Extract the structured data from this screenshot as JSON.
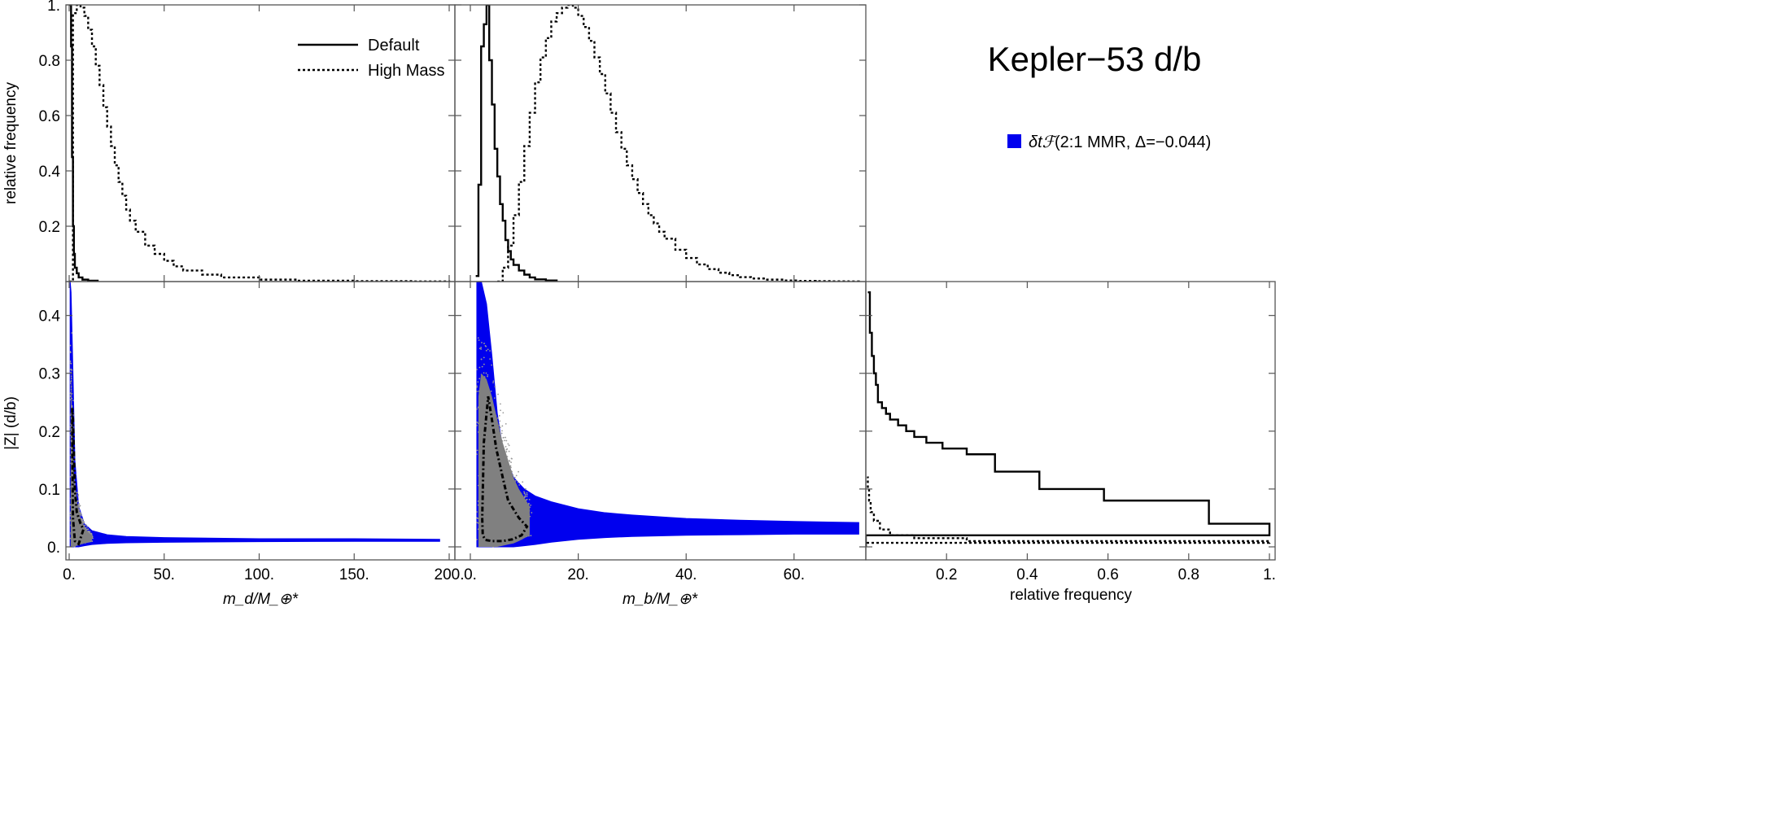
{
  "figure": {
    "title": "Kepler−53 d/b",
    "legend_hist": [
      {
        "label": "Default",
        "style": "solid"
      },
      {
        "label": "High Mass",
        "style": "dotted"
      }
    ],
    "legend_scatter": {
      "symbol": "δtℱ",
      "label": "(2:1 MMR, Δ=−0.044)",
      "color": "#0000ee"
    },
    "fill_gray": "#808080",
    "scatter_blue": "#0000ee"
  },
  "chart_data": [
    {
      "panel": "top-left",
      "type": "line",
      "xlim": [
        0,
        200
      ],
      "ylim": [
        0,
        1
      ],
      "ylabel": "relative frequency",
      "yticks": [
        "0.2",
        "0.4",
        "0.6",
        "0.8",
        "1."
      ],
      "series": [
        {
          "name": "Default",
          "style": "solid",
          "x": [
            0,
            0.5,
            1,
            1.5,
            2,
            2.5,
            3,
            4,
            5,
            7,
            10,
            15
          ],
          "y": [
            1.0,
            1.0,
            0.85,
            0.45,
            0.2,
            0.1,
            0.05,
            0.03,
            0.015,
            0.007,
            0.003,
            0.0
          ]
        },
        {
          "name": "High Mass",
          "style": "dotted",
          "x": [
            0,
            2,
            4,
            6,
            8,
            10,
            12,
            14,
            16,
            18,
            20,
            22,
            24,
            26,
            28,
            30,
            32,
            35,
            40,
            45,
            50,
            55,
            60,
            70,
            80,
            100,
            120,
            150,
            180,
            200
          ],
          "y": [
            0,
            0.97,
            1.0,
            0.99,
            0.96,
            0.91,
            0.85,
            0.78,
            0.71,
            0.63,
            0.56,
            0.49,
            0.42,
            0.36,
            0.31,
            0.26,
            0.22,
            0.18,
            0.13,
            0.1,
            0.075,
            0.055,
            0.04,
            0.025,
            0.015,
            0.007,
            0.003,
            0.0015,
            0.0005,
            0.0
          ]
        }
      ]
    },
    {
      "panel": "top-middle",
      "type": "line",
      "xlim": [
        0,
        73
      ],
      "ylim": [
        0,
        1
      ],
      "series": [
        {
          "name": "Default",
          "style": "solid",
          "x": [
            1,
            1.5,
            2,
            2.5,
            3,
            3.5,
            4,
            4.5,
            5,
            5.5,
            6,
            6.5,
            7,
            7.5,
            8,
            9,
            10,
            11,
            12,
            14,
            16
          ],
          "y": [
            0.02,
            0.35,
            0.85,
            0.93,
            1.0,
            0.8,
            0.64,
            0.48,
            0.38,
            0.28,
            0.22,
            0.15,
            0.11,
            0.08,
            0.06,
            0.04,
            0.025,
            0.015,
            0.008,
            0.004,
            0.0
          ]
        },
        {
          "name": "High Mass",
          "style": "dotted",
          "x": [
            5,
            6,
            7,
            8,
            9,
            10,
            11,
            12,
            13,
            14,
            15,
            16,
            17,
            18,
            19,
            20,
            21,
            22,
            23,
            24,
            25,
            26,
            27,
            28,
            29,
            30,
            31,
            32,
            33,
            34,
            35,
            36,
            38,
            40,
            42,
            44,
            46,
            48,
            50,
            52,
            55,
            58,
            61,
            64,
            67,
            70,
            72
          ],
          "y": [
            0.0,
            0.05,
            0.13,
            0.24,
            0.36,
            0.49,
            0.61,
            0.72,
            0.81,
            0.88,
            0.94,
            0.97,
            0.99,
            1.0,
            0.99,
            0.96,
            0.92,
            0.87,
            0.81,
            0.75,
            0.68,
            0.61,
            0.54,
            0.48,
            0.42,
            0.37,
            0.32,
            0.28,
            0.24,
            0.21,
            0.18,
            0.155,
            0.115,
            0.085,
            0.062,
            0.045,
            0.032,
            0.023,
            0.016,
            0.011,
            0.007,
            0.004,
            0.0025,
            0.0015,
            0.0008,
            0.0004,
            0.0
          ]
        }
      ]
    },
    {
      "panel": "bottom-left",
      "type": "scatter",
      "xlim": [
        0,
        200
      ],
      "ylim": [
        0,
        0.46
      ],
      "xlabel": "m_d/M_⊕*",
      "ylabel": "|Z| (d/b)",
      "xticks": [
        "0.",
        "50.",
        "100.",
        "150.",
        "200."
      ],
      "yticks": [
        "0.",
        "0.1",
        "0.2",
        "0.3",
        "0.4"
      ],
      "blue_band": {
        "x": [
          0.5,
          1,
          2,
          3,
          5,
          8,
          12,
          20,
          30,
          50,
          100,
          150,
          195
        ],
        "upper": [
          0.46,
          0.44,
          0.3,
          0.15,
          0.07,
          0.04,
          0.028,
          0.021,
          0.018,
          0.016,
          0.014,
          0.014,
          0.013
        ],
        "lower": [
          0.0,
          0.0,
          0.0,
          0.0,
          0.0,
          0.002,
          0.004,
          0.006,
          0.007,
          0.008,
          0.009,
          0.0095,
          0.0095
        ]
      },
      "gray_region": {
        "x": [
          0.8,
          1.5,
          2.5,
          4,
          6,
          8,
          10,
          12
        ],
        "upper": [
          0.33,
          0.22,
          0.13,
          0.08,
          0.05,
          0.035,
          0.025,
          0.02
        ],
        "lower": [
          0.0,
          0.0,
          0.0,
          0.002,
          0.004,
          0.006,
          0.008,
          0.01
        ]
      },
      "contour": {
        "x": [
          1.6,
          1.7,
          2.0,
          3.0,
          5.0,
          7.5,
          6.0,
          4.0,
          3.0,
          2.5,
          2.0,
          1.6
        ],
        "y": [
          0.24,
          0.15,
          0.05,
          0.01,
          0.005,
          0.03,
          0.04,
          0.06,
          0.1,
          0.16,
          0.22,
          0.24
        ]
      }
    },
    {
      "panel": "bottom-middle",
      "type": "scatter",
      "xlim": [
        0,
        73
      ],
      "ylim": [
        0,
        0.46
      ],
      "xlabel": "m_b/M_⊕*",
      "xticks": [
        "0.",
        "20.",
        "40.",
        "60."
      ],
      "blue_band": {
        "x": [
          1.2,
          2,
          3,
          4,
          5,
          6,
          8,
          10,
          12,
          15,
          20,
          25,
          30,
          40,
          50,
          60,
          72
        ],
        "upper": [
          0.46,
          0.46,
          0.42,
          0.33,
          0.23,
          0.17,
          0.12,
          0.1,
          0.088,
          0.078,
          0.066,
          0.059,
          0.055,
          0.049,
          0.046,
          0.044,
          0.042
        ],
        "lower": [
          0.0,
          0.0,
          0.0,
          0.0,
          0.0,
          0.0,
          0.0,
          0.002,
          0.004,
          0.008,
          0.013,
          0.016,
          0.018,
          0.02,
          0.021,
          0.022,
          0.022
        ]
      },
      "gray_region": {
        "x": [
          1.5,
          2,
          3,
          4,
          5,
          6,
          7,
          8,
          9,
          10,
          11
        ],
        "upper": [
          0.26,
          0.3,
          0.29,
          0.26,
          0.22,
          0.18,
          0.15,
          0.12,
          0.1,
          0.085,
          0.07
        ],
        "lower": [
          0.0,
          0.0,
          0.0,
          0.0,
          0.0,
          0.002,
          0.004,
          0.006,
          0.01,
          0.015,
          0.02
        ]
      },
      "contour": {
        "x": [
          2.2,
          2.3,
          2.8,
          4.0,
          6.0,
          7.8,
          9.5,
          10.5,
          9.0,
          7.0,
          6.0,
          4.8,
          4.0,
          3.3,
          2.5,
          2.2
        ],
        "y": [
          0.05,
          0.02,
          0.012,
          0.01,
          0.01,
          0.013,
          0.02,
          0.035,
          0.05,
          0.08,
          0.12,
          0.17,
          0.22,
          0.26,
          0.18,
          0.05
        ]
      }
    },
    {
      "panel": "bottom-right",
      "type": "line",
      "xlim": [
        0,
        1
      ],
      "ylim": [
        0,
        0.46
      ],
      "xlabel": "relative frequency",
      "xticks": [
        "0.2",
        "0.4",
        "0.6",
        "0.8",
        "1."
      ],
      "series": [
        {
          "name": "Default",
          "style": "solid",
          "x": [
            0.0,
            1.0,
            0.85,
            0.59,
            0.43,
            0.32,
            0.25,
            0.19,
            0.15,
            0.12,
            0.1,
            0.08,
            0.06,
            0.05,
            0.04,
            0.03,
            0.025,
            0.02,
            0.015,
            0.01,
            0.005
          ],
          "y": [
            0.0,
            0.02,
            0.04,
            0.08,
            0.1,
            0.13,
            0.16,
            0.17,
            0.18,
            0.19,
            0.2,
            0.21,
            0.22,
            0.23,
            0.24,
            0.25,
            0.28,
            0.3,
            0.33,
            0.37,
            0.44
          ]
        },
        {
          "name": "High Mass",
          "style": "dotted",
          "x": [
            0.0,
            1.0,
            0.25,
            0.12,
            0.06,
            0.035,
            0.02,
            0.012,
            0.008,
            0.005,
            0.003
          ],
          "y": [
            0.0,
            0.007,
            0.01,
            0.015,
            0.02,
            0.03,
            0.045,
            0.06,
            0.08,
            0.1,
            0.12
          ]
        }
      ]
    }
  ]
}
